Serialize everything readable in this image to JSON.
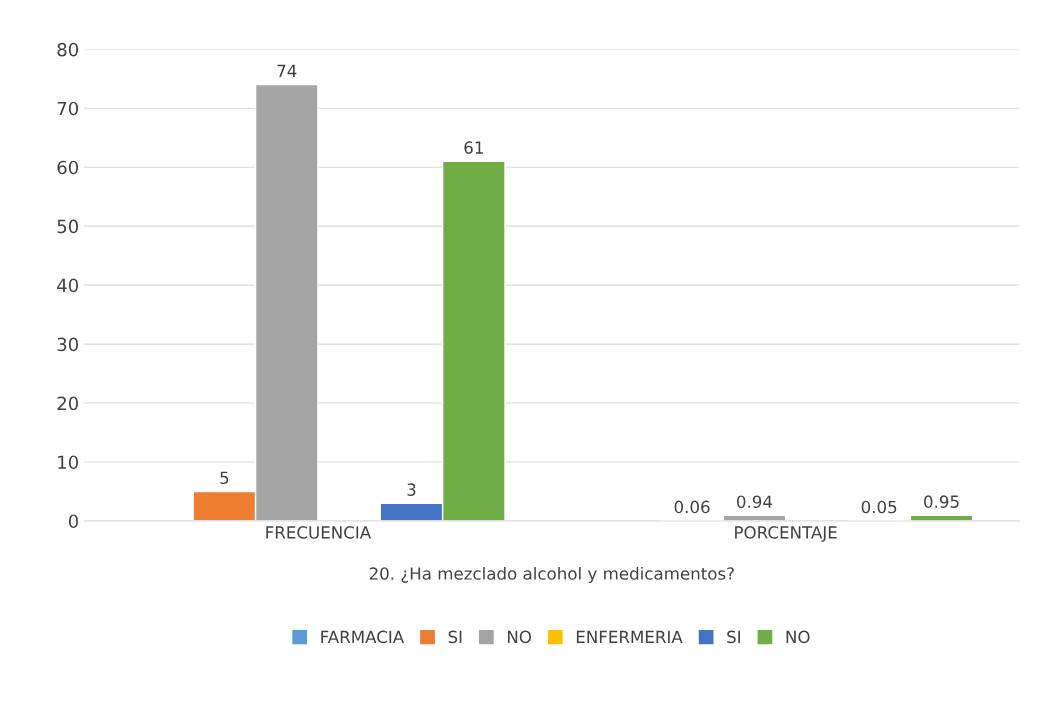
{
  "chart_data": {
    "type": "bar",
    "categories": [
      "FRECUENCIA",
      "PORCENTAJE"
    ],
    "xlabel": "20. ¿Ha mezclado alcohol y medicamentos?",
    "series": [
      {
        "name": "FARMACIA",
        "color": "#5b9bd5",
        "values": [
          null,
          null
        ]
      },
      {
        "name": "SI",
        "color": "#ed7d31",
        "values": [
          5,
          0.06
        ]
      },
      {
        "name": "NO",
        "color": "#a5a5a5",
        "values": [
          74,
          0.94
        ]
      },
      {
        "name": "ENFERMERIA",
        "color": "#ffc000",
        "values": [
          null,
          null
        ]
      },
      {
        "name": "SI",
        "color": "#4472c4",
        "values": [
          3,
          0.05
        ]
      },
      {
        "name": "NO",
        "color": "#70ad47",
        "values": [
          61,
          0.95
        ]
      }
    ],
    "ylim": [
      0,
      80
    ],
    "yticks": [
      0,
      10,
      20,
      30,
      40,
      50,
      60,
      70,
      80
    ],
    "grid": "y",
    "legend": "bottom",
    "data_labels": true
  }
}
